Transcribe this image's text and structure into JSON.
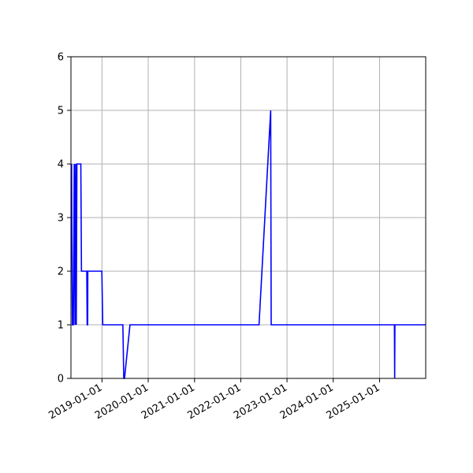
{
  "chart_data": {
    "type": "line",
    "title": "",
    "xlabel": "",
    "ylabel": "",
    "x_axis_type": "date",
    "xlim": [
      "2018-05-01",
      "2025-12-31"
    ],
    "ylim": [
      0,
      6
    ],
    "grid": true,
    "legend": "none",
    "yticks": [
      0,
      1,
      2,
      3,
      4,
      5,
      6
    ],
    "xticks": [
      "2019-01-01",
      "2020-01-01",
      "2021-01-01",
      "2022-01-01",
      "2023-01-01",
      "2024-01-01",
      "2025-01-01"
    ],
    "series": [
      {
        "color": "#0000ff",
        "points": [
          [
            "2018-05-06",
            4
          ],
          [
            "2018-05-12",
            1
          ],
          [
            "2018-05-20",
            1
          ],
          [
            "2018-05-27",
            4
          ],
          [
            "2018-06-02",
            1
          ],
          [
            "2018-06-07",
            4
          ],
          [
            "2018-06-12",
            1
          ],
          [
            "2018-06-17",
            4
          ],
          [
            "2018-07-18",
            4
          ],
          [
            "2018-07-23",
            2
          ],
          [
            "2018-09-03",
            2
          ],
          [
            "2018-09-06",
            1
          ],
          [
            "2018-09-10",
            1
          ],
          [
            "2018-09-11",
            2
          ],
          [
            "2018-12-31",
            2
          ],
          [
            "2019-01-07",
            1
          ],
          [
            "2019-06-15",
            1
          ],
          [
            "2019-06-22",
            0
          ],
          [
            "2019-06-28",
            0
          ],
          [
            "2019-08-10",
            1
          ],
          [
            "2022-05-25",
            1
          ],
          [
            "2022-08-25",
            5
          ],
          [
            "2022-08-29",
            1
          ],
          [
            "2025-04-28",
            1
          ],
          [
            "2025-04-30",
            0
          ],
          [
            "2025-05-02",
            1
          ],
          [
            "2025-12-31",
            1
          ]
        ]
      }
    ]
  }
}
